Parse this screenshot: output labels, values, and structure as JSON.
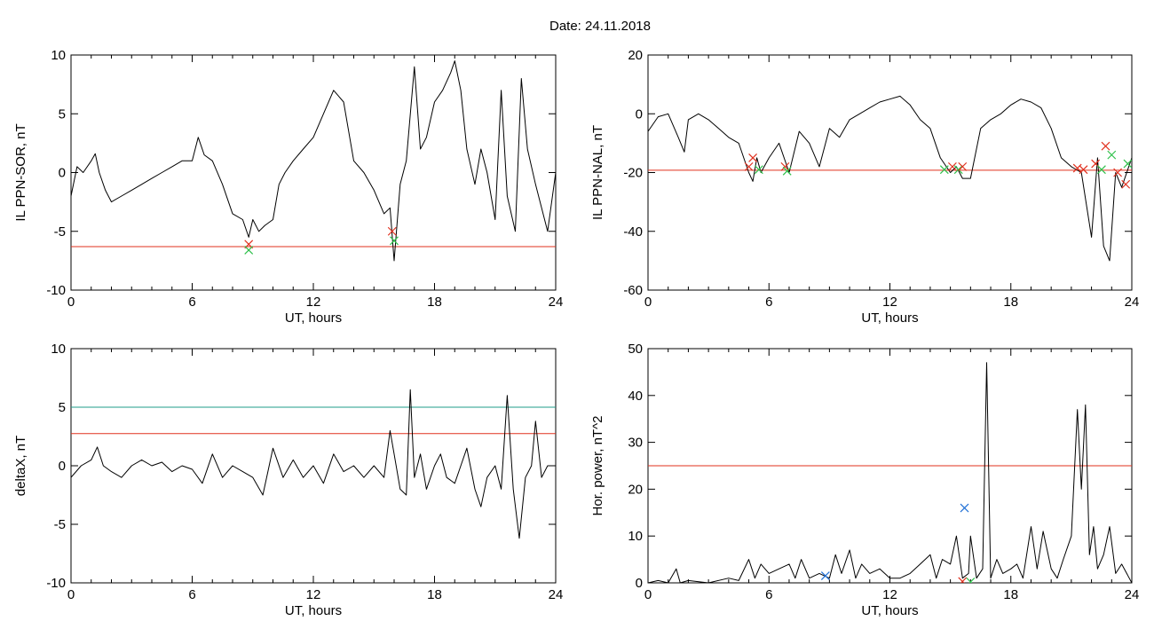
{
  "title": "Date:  24.11.2018",
  "colors": {
    "series": "#000000",
    "threshold_red": "#e0301e",
    "threshold_green": "#1f9e8a",
    "marker_red": "#e0301e",
    "marker_green": "#2ec04a",
    "marker_blue": "#1f6fd6",
    "highlight": "#1f6fd6"
  },
  "chart_data": [
    {
      "type": "line",
      "id": "p1",
      "ylabel": "IL PPN-SOR, nT",
      "xlabel": "UT, hours",
      "xlim": [
        0,
        24
      ],
      "ylim": [
        -10,
        10
      ],
      "xticks": [
        "0",
        "6",
        "12",
        "18",
        "24"
      ],
      "yticks": [
        "10",
        "5",
        "0",
        "-5",
        "-10"
      ],
      "series": [
        {
          "x": [
            0,
            0.3,
            0.6,
            1,
            1.2,
            1.4,
            1.7,
            2,
            2.5,
            3,
            3.5,
            4,
            4.5,
            5,
            5.5,
            6,
            6.3,
            6.6,
            7,
            7.5,
            8,
            8.5,
            8.8,
            9,
            9.3,
            9.6,
            10,
            10.3,
            10.6,
            11,
            11.5,
            12,
            12.5,
            13,
            13.5,
            14,
            14.5,
            15,
            15.5,
            15.8,
            16,
            16.3,
            16.6,
            17,
            17.3,
            17.6,
            18,
            18.4,
            18.8,
            19,
            19.3,
            19.6,
            20,
            20.3,
            20.6,
            21,
            21.3,
            21.6,
            22,
            22.3,
            22.6,
            23,
            23.3,
            23.6,
            24
          ],
          "y": [
            -2,
            0.5,
            0,
            1,
            1.6,
            0,
            -1.5,
            -2.5,
            -2,
            -1.5,
            -1,
            -0.5,
            0,
            0.5,
            1,
            1,
            3,
            1.5,
            1,
            -1,
            -3.5,
            -4,
            -5.5,
            -4,
            -5,
            -4.5,
            -4,
            -1,
            0,
            1,
            2,
            3,
            5,
            7,
            6,
            1,
            0,
            -1.5,
            -3.5,
            -3,
            -7.5,
            -1,
            1,
            9,
            2,
            3,
            6,
            7,
            8.5,
            9.5,
            7,
            2,
            -1,
            2,
            0,
            -4,
            7,
            -2,
            -5,
            8,
            2,
            -1,
            -3,
            -5,
            0
          ]
        }
      ],
      "hlines": [
        {
          "y": -6.3,
          "color": "red"
        }
      ],
      "markers": [
        {
          "x": 8.8,
          "y": -6.1,
          "color": "red"
        },
        {
          "x": 8.8,
          "y": -6.6,
          "color": "green"
        },
        {
          "x": 15.9,
          "y": -5.0,
          "color": "red"
        },
        {
          "x": 16.0,
          "y": -5.8,
          "color": "green"
        }
      ]
    },
    {
      "type": "line",
      "id": "p2",
      "ylabel": "IL PPN-NAL, nT",
      "xlabel": "UT, hours",
      "xlim": [
        0,
        24
      ],
      "ylim": [
        -60,
        20
      ],
      "xticks": [
        "0",
        "6",
        "12",
        "18",
        "24"
      ],
      "yticks": [
        "20",
        "0",
        "-20",
        "-40",
        "-60"
      ],
      "series": [
        {
          "x": [
            0,
            0.5,
            1,
            1.5,
            1.8,
            2,
            2.5,
            3,
            3.5,
            4,
            4.5,
            5,
            5.2,
            5.4,
            5.6,
            6,
            6.5,
            7,
            7.5,
            8,
            8.5,
            9,
            9.5,
            10,
            10.5,
            11,
            11.5,
            12,
            12.5,
            13,
            13.5,
            14,
            14.5,
            15,
            15.3,
            15.6,
            16,
            16.5,
            17,
            17.5,
            18,
            18.5,
            19,
            19.5,
            20,
            20.5,
            21,
            21.5,
            22,
            22.3,
            22.6,
            22.9,
            23.2,
            23.5,
            24
          ],
          "y": [
            -6,
            -1,
            0,
            -8,
            -13,
            -2,
            0,
            -2,
            -5,
            -8,
            -10,
            -20,
            -23,
            -15,
            -20,
            -15,
            -10,
            -20,
            -6,
            -10,
            -18,
            -5,
            -8,
            -2,
            0,
            2,
            4,
            5,
            6,
            3,
            -2,
            -5,
            -15,
            -20,
            -18,
            -22,
            -22,
            -5,
            -2,
            0,
            3,
            5,
            4,
            2,
            -5,
            -15,
            -18,
            -20,
            -42,
            -15,
            -45,
            -50,
            -20,
            -25,
            -15
          ]
        }
      ],
      "hlines": [
        {
          "y": -19.2,
          "color": "red"
        }
      ],
      "markers": [
        {
          "x": 5.0,
          "y": -18,
          "color": "red"
        },
        {
          "x": 5.2,
          "y": -15,
          "color": "red"
        },
        {
          "x": 5.5,
          "y": -19,
          "color": "green"
        },
        {
          "x": 6.8,
          "y": -18,
          "color": "red"
        },
        {
          "x": 6.9,
          "y": -19.5,
          "color": "green"
        },
        {
          "x": 14.7,
          "y": -19,
          "color": "green"
        },
        {
          "x": 15.1,
          "y": -18,
          "color": "red"
        },
        {
          "x": 15.4,
          "y": -19,
          "color": "green"
        },
        {
          "x": 15.6,
          "y": -18,
          "color": "red"
        },
        {
          "x": 21.3,
          "y": -18.5,
          "color": "red"
        },
        {
          "x": 21.6,
          "y": -19,
          "color": "red"
        },
        {
          "x": 22.2,
          "y": -17,
          "color": "red"
        },
        {
          "x": 22.5,
          "y": -19,
          "color": "green"
        },
        {
          "x": 22.7,
          "y": -11,
          "color": "red"
        },
        {
          "x": 23.0,
          "y": -14,
          "color": "green"
        },
        {
          "x": 23.3,
          "y": -20,
          "color": "red"
        },
        {
          "x": 23.7,
          "y": -24,
          "color": "red"
        },
        {
          "x": 23.8,
          "y": -17,
          "color": "green"
        }
      ]
    },
    {
      "type": "line",
      "id": "p3",
      "ylabel": "deltaX, nT",
      "xlabel": "UT, hours",
      "xlim": [
        0,
        24
      ],
      "ylim": [
        -10,
        10
      ],
      "xticks": [
        "0",
        "6",
        "12",
        "18",
        "24"
      ],
      "yticks": [
        "10",
        "5",
        "0",
        "-5",
        "-10"
      ],
      "series": [
        {
          "x": [
            0,
            0.5,
            1,
            1.3,
            1.6,
            2,
            2.5,
            3,
            3.5,
            4,
            4.5,
            5,
            5.5,
            6,
            6.5,
            7,
            7.5,
            8,
            8.5,
            9,
            9.5,
            10,
            10.5,
            11,
            11.5,
            12,
            12.5,
            13,
            13.5,
            14,
            14.5,
            15,
            15.5,
            15.8,
            16,
            16.3,
            16.6,
            16.8,
            17,
            17.3,
            17.6,
            18,
            18.3,
            18.6,
            19,
            19.3,
            19.6,
            20,
            20.3,
            20.6,
            21,
            21.3,
            21.6,
            21.9,
            22.2,
            22.5,
            22.8,
            23,
            23.3,
            23.6,
            24
          ],
          "y": [
            -1,
            0,
            0.5,
            1.6,
            0,
            -0.5,
            -1,
            0,
            0.5,
            0,
            0.3,
            -0.5,
            0,
            -0.3,
            -1.5,
            1,
            -1,
            0,
            -0.5,
            -1,
            -2.5,
            1.5,
            -1,
            0.5,
            -1,
            0,
            -1.5,
            1,
            -0.5,
            0,
            -1,
            0,
            -1,
            3,
            1,
            -2,
            -2.5,
            6.5,
            -1,
            1,
            -2,
            0,
            1,
            -1,
            -1.5,
            0,
            1.5,
            -2,
            -3.5,
            -1,
            0,
            -2,
            6,
            -2,
            -6.2,
            -1,
            0,
            3.8,
            -1,
            0,
            0
          ]
        }
      ],
      "hlines": [
        {
          "y": 2.75,
          "color": "red"
        },
        {
          "y": 5.0,
          "color": "green"
        }
      ],
      "markers": []
    },
    {
      "type": "line",
      "id": "p4",
      "ylabel": "Hor. power, nT^2",
      "xlabel": "UT, hours",
      "xlim": [
        0,
        24
      ],
      "ylim": [
        0,
        50
      ],
      "xticks": [
        "0",
        "6",
        "12",
        "18",
        "24"
      ],
      "yticks": [
        "50",
        "40",
        "30",
        "20",
        "10",
        "0"
      ],
      "series": [
        {
          "x": [
            0,
            0.5,
            1,
            1.4,
            1.6,
            2,
            3,
            4,
            4.5,
            5,
            5.3,
            5.6,
            6,
            6.5,
            7,
            7.3,
            7.6,
            8,
            8.5,
            9,
            9.3,
            9.6,
            10,
            10.3,
            10.6,
            11,
            11.5,
            12,
            12.5,
            13,
            13.5,
            14,
            14.3,
            14.6,
            15,
            15.3,
            15.6,
            15.9,
            16,
            16.3,
            16.6,
            16.8,
            17,
            17.3,
            17.6,
            18,
            18.3,
            18.6,
            19,
            19.3,
            19.6,
            20,
            20.3,
            20.6,
            21,
            21.3,
            21.5,
            21.7,
            21.9,
            22.1,
            22.3,
            22.6,
            22.9,
            23.2,
            23.5,
            24
          ],
          "y": [
            0,
            0.5,
            0,
            3,
            0,
            0.5,
            0,
            1,
            0.5,
            5,
            1,
            4,
            2,
            3,
            4,
            1,
            5,
            1,
            2,
            1,
            6,
            2,
            7,
            1,
            4,
            2,
            3,
            1,
            1,
            2,
            4,
            6,
            1,
            5,
            4,
            10,
            1,
            2,
            10,
            1,
            3,
            47,
            1,
            5,
            2,
            3,
            4,
            1,
            12,
            3,
            11,
            3,
            1,
            5,
            10,
            37,
            20,
            38,
            6,
            12,
            3,
            6,
            12,
            2,
            4,
            0
          ]
        }
      ],
      "hlines": [
        {
          "y": 25,
          "color": "red"
        }
      ],
      "markers": [
        {
          "x": 8.8,
          "y": 1.5,
          "color": "blue"
        },
        {
          "x": 15.7,
          "y": 16,
          "color": "blue"
        },
        {
          "x": 15.6,
          "y": 0.3,
          "color": "red"
        },
        {
          "x": 16.0,
          "y": 0.2,
          "color": "green"
        }
      ]
    }
  ]
}
